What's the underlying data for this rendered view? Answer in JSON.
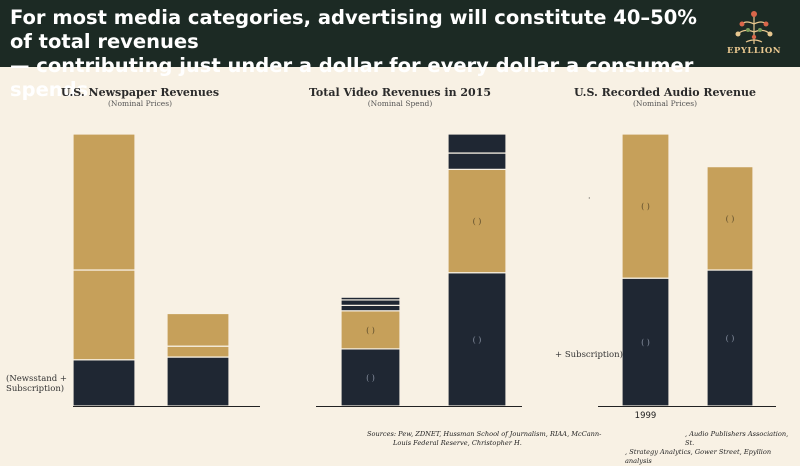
{
  "header": {
    "title_line1": "For most media categories, advertising will constitute 40–50% of total revenues",
    "title_line2": "— contributing just under a dollar for every dollar a consumer spends",
    "logo_text": "EPYLLION"
  },
  "colors": {
    "header_bg": "#1c2a24",
    "background": "#f8f1e4",
    "gold": "#c6a05a",
    "navy": "#1f2733",
    "divider": "#f8f1e4"
  },
  "chart_data": [
    {
      "type": "bar",
      "stacked": true,
      "title": "U.S. Newspaper Revenues",
      "subtitle": "(Nominal Prices)",
      "ylim": [
        0,
        100
      ],
      "side_label_lines": [
        "(Newsstand +",
        "Subscription)"
      ],
      "bars": [
        {
          "segments": [
            {
              "value": 17,
              "color": "#1f2733"
            },
            {
              "value": 33,
              "color": "#c6a05a"
            },
            {
              "value": 50,
              "color": "#c6a05a"
            }
          ]
        },
        {
          "segments": [
            {
              "value": 18,
              "color": "#1f2733"
            },
            {
              "value": 4,
              "color": "#c6a05a"
            },
            {
              "value": 12,
              "color": "#c6a05a"
            }
          ]
        }
      ]
    },
    {
      "type": "bar",
      "stacked": true,
      "title": "Total Video Revenues in 2015",
      "subtitle": "(Nominal Spend)",
      "ylim": [
        0,
        100
      ],
      "bars": [
        {
          "segments": [
            {
              "value": 21,
              "color": "#1f2733",
              "label": "(    )"
            },
            {
              "value": 14,
              "color": "#c6a05a",
              "label": "(    )"
            },
            {
              "value": 2,
              "color": "#1f2733"
            },
            {
              "value": 2,
              "color": "#1f2733"
            },
            {
              "value": 1,
              "color": "#1f2733"
            }
          ]
        },
        {
          "segments": [
            {
              "value": 49,
              "color": "#1f2733",
              "label": "(    )"
            },
            {
              "value": 38,
              "color": "#c6a05a",
              "label": "(    )"
            },
            {
              "value": 6,
              "color": "#1f2733"
            },
            {
              "value": 7,
              "color": "#1f2733"
            }
          ]
        }
      ]
    },
    {
      "type": "bar",
      "stacked": true,
      "title": "U.S. Recorded Audio Revenue",
      "subtitle": "(Nominal Prices)",
      "ylim": [
        0,
        100
      ],
      "categories": [
        "1999",
        ""
      ],
      "side_label": "+ Subscription)",
      "bars": [
        {
          "segments": [
            {
              "value": 47,
              "color": "#1f2733",
              "label": "(    )"
            },
            {
              "value": 53,
              "color": "#c6a05a",
              "label": "(    )"
            }
          ]
        },
        {
          "segments": [
            {
              "value": 50,
              "color": "#1f2733",
              "label": "(    )"
            },
            {
              "value": 38,
              "color": "#c6a05a",
              "label": "(    )"
            }
          ]
        }
      ]
    }
  ],
  "sources": {
    "left_line1": "Sources: Pew, ZDNET, Hussman School of Journalism, RIAA, McCann-",
    "left_line2": "Louis Federal Reserve, Christopher H.",
    "right_line1": ", Audio Publishers Association, St.",
    "right_line2": ", Strategy Analytics, Gower Street, Epyllion analysis"
  }
}
